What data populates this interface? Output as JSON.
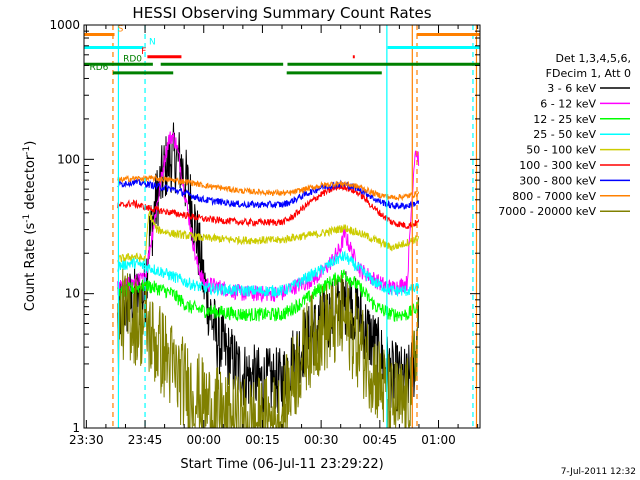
{
  "chart_data": {
    "type": "line",
    "title": "HESSI Observing Summary Count Rates",
    "xlabel": "Start Time (06-Jul-11 23:29:22)",
    "ylabel_main": "Count Rate (s",
    "ylabel_sup1": "-1",
    "ylabel_mid": " detector",
    "ylabel_sup2": "-1",
    "ylabel_end": ")",
    "y_scale": "log",
    "ylim": [
      1,
      1000
    ],
    "xlim_minutes": [
      -30.6,
      70.6
    ],
    "x_ticks": [
      {
        "label": "23:30",
        "m": -30
      },
      {
        "label": "23:45",
        "m": -15
      },
      {
        "label": "00:00",
        "m": 0
      },
      {
        "label": "00:15",
        "m": 15
      },
      {
        "label": "00:30",
        "m": 30
      },
      {
        "label": "00:45",
        "m": 45
      },
      {
        "label": "01:00",
        "m": 60
      }
    ],
    "y_ticks": [
      {
        "label": "1",
        "v": 1
      },
      {
        "label": "10",
        "v": 10
      },
      {
        "label": "100",
        "v": 100
      },
      {
        "label": "1000",
        "v": 1000
      }
    ],
    "footer_date": "7-Jul-2011 12:32",
    "legend_header": [
      "Det 1,3,4,5,6,",
      "FDecim 1, Att 0"
    ],
    "series": [
      {
        "name": "3 - 6 keV",
        "color": "#000000",
        "noise": 0.6,
        "points": [
          [
            -22,
            6
          ],
          [
            -21,
            8
          ],
          [
            -17,
            9
          ],
          [
            -15,
            10
          ],
          [
            -14,
            25
          ],
          [
            -12,
            50
          ],
          [
            -10,
            85
          ],
          [
            -8,
            105
          ],
          [
            -6,
            95
          ],
          [
            -4,
            60
          ],
          [
            -2,
            30
          ],
          [
            0,
            12
          ],
          [
            3,
            5
          ],
          [
            6,
            3.5
          ],
          [
            10,
            2.5
          ],
          [
            15,
            2.2
          ],
          [
            20,
            2.2
          ],
          [
            22,
            3
          ],
          [
            25,
            4
          ],
          [
            30,
            6
          ],
          [
            35,
            8
          ],
          [
            37,
            9
          ],
          [
            40,
            6.5
          ],
          [
            43,
            4.5
          ],
          [
            45,
            3.5
          ],
          [
            48,
            2.5
          ],
          [
            52,
            2.2
          ],
          [
            54,
            3
          ],
          [
            55,
            10
          ]
        ]
      },
      {
        "name": "6 - 12 keV",
        "color": "#ff00ff",
        "noise": 0.14,
        "points": [
          [
            -22,
            11
          ],
          [
            -18,
            12
          ],
          [
            -15,
            13
          ],
          [
            -14,
            20
          ],
          [
            -12,
            45
          ],
          [
            -10,
            100
          ],
          [
            -9,
            140
          ],
          [
            -8,
            150
          ],
          [
            -7,
            130
          ],
          [
            -6,
            90
          ],
          [
            -4,
            40
          ],
          [
            -2,
            18
          ],
          [
            0,
            12
          ],
          [
            5,
            11
          ],
          [
            10,
            10
          ],
          [
            15,
            10
          ],
          [
            20,
            10
          ],
          [
            22,
            11
          ],
          [
            26,
            12
          ],
          [
            30,
            14
          ],
          [
            33,
            18
          ],
          [
            35,
            22
          ],
          [
            36,
            28
          ],
          [
            38,
            20
          ],
          [
            40,
            15
          ],
          [
            45,
            12
          ],
          [
            48,
            11
          ],
          [
            52,
            12
          ],
          [
            53,
            40
          ],
          [
            54,
            120
          ],
          [
            55,
            100
          ]
        ]
      },
      {
        "name": "12 - 25 keV",
        "color": "#00ff00",
        "noise": 0.12,
        "points": [
          [
            -22,
            10
          ],
          [
            -18,
            11
          ],
          [
            -15,
            11.5
          ],
          [
            -12,
            11
          ],
          [
            -8,
            10
          ],
          [
            -4,
            8
          ],
          [
            0,
            7.5
          ],
          [
            10,
            7
          ],
          [
            20,
            7
          ],
          [
            22,
            7.5
          ],
          [
            26,
            9
          ],
          [
            30,
            11
          ],
          [
            34,
            13
          ],
          [
            36,
            14
          ],
          [
            40,
            11
          ],
          [
            44,
            8
          ],
          [
            48,
            7
          ],
          [
            52,
            7
          ],
          [
            55,
            8
          ]
        ]
      },
      {
        "name": "25 - 50 keV",
        "color": "#00ffff",
        "noise": 0.1,
        "points": [
          [
            -22,
            16
          ],
          [
            -18,
            17
          ],
          [
            -15,
            16
          ],
          [
            -12,
            15
          ],
          [
            -8,
            13.5
          ],
          [
            -4,
            12
          ],
          [
            0,
            11
          ],
          [
            10,
            10.5
          ],
          [
            20,
            10.5
          ],
          [
            22,
            11
          ],
          [
            26,
            13
          ],
          [
            30,
            15
          ],
          [
            34,
            18
          ],
          [
            36,
            19
          ],
          [
            40,
            15
          ],
          [
            44,
            12
          ],
          [
            48,
            10.5
          ],
          [
            52,
            10.5
          ],
          [
            55,
            11
          ]
        ]
      },
      {
        "name": "50 - 100 keV",
        "color": "#cccc00",
        "noise": 0.07,
        "points": [
          [
            -22,
            18
          ],
          [
            -18,
            19
          ],
          [
            -15,
            18
          ],
          [
            -14,
            40
          ],
          [
            -12,
            30
          ],
          [
            -8,
            28
          ],
          [
            -4,
            27
          ],
          [
            0,
            26
          ],
          [
            10,
            25
          ],
          [
            20,
            25
          ],
          [
            22,
            26
          ],
          [
            26,
            27
          ],
          [
            30,
            28
          ],
          [
            34,
            30
          ],
          [
            36,
            31
          ],
          [
            40,
            28
          ],
          [
            44,
            25
          ],
          [
            48,
            22
          ],
          [
            52,
            24
          ],
          [
            55,
            26
          ]
        ]
      },
      {
        "name": "100 - 300 keV",
        "color": "#ff0000",
        "noise": 0.06,
        "points": [
          [
            -22,
            45
          ],
          [
            -18,
            47
          ],
          [
            -15,
            44
          ],
          [
            -12,
            42
          ],
          [
            -8,
            40
          ],
          [
            -4,
            38
          ],
          [
            0,
            36
          ],
          [
            10,
            34
          ],
          [
            20,
            34
          ],
          [
            22,
            36
          ],
          [
            26,
            45
          ],
          [
            30,
            55
          ],
          [
            34,
            62
          ],
          [
            36,
            63
          ],
          [
            40,
            55
          ],
          [
            44,
            42
          ],
          [
            48,
            34
          ],
          [
            52,
            32
          ],
          [
            55,
            34
          ]
        ]
      },
      {
        "name": "300 - 800 keV",
        "color": "#0000ff",
        "noise": 0.06,
        "points": [
          [
            -22,
            65
          ],
          [
            -18,
            68
          ],
          [
            -15,
            66
          ],
          [
            -12,
            63
          ],
          [
            -8,
            60
          ],
          [
            -4,
            55
          ],
          [
            0,
            50
          ],
          [
            10,
            46
          ],
          [
            20,
            46
          ],
          [
            22,
            48
          ],
          [
            26,
            55
          ],
          [
            30,
            62
          ],
          [
            34,
            65
          ],
          [
            36,
            65
          ],
          [
            40,
            60
          ],
          [
            44,
            50
          ],
          [
            48,
            45
          ],
          [
            52,
            45
          ],
          [
            55,
            48
          ]
        ]
      },
      {
        "name": "800 - 7000 keV",
        "color": "#ff8000",
        "noise": 0.05,
        "points": [
          [
            -22,
            70
          ],
          [
            -18,
            72
          ],
          [
            -15,
            72
          ],
          [
            -12,
            72
          ],
          [
            -8,
            70
          ],
          [
            -4,
            68
          ],
          [
            0,
            64
          ],
          [
            10,
            58
          ],
          [
            20,
            56
          ],
          [
            22,
            56
          ],
          [
            26,
            60
          ],
          [
            30,
            64
          ],
          [
            34,
            66
          ],
          [
            36,
            66
          ],
          [
            40,
            62
          ],
          [
            44,
            55
          ],
          [
            48,
            52
          ],
          [
            52,
            53
          ],
          [
            55,
            56
          ]
        ]
      },
      {
        "name": "7000 - 20000 keV",
        "color": "#808000",
        "noise": 0.8,
        "points": [
          [
            -22,
            5
          ],
          [
            -21,
            7
          ],
          [
            -18,
            6.5
          ],
          [
            -15,
            6
          ],
          [
            -13,
            4.5
          ],
          [
            -10,
            3.5
          ],
          [
            -7,
            2.5
          ],
          [
            -4,
            2
          ],
          [
            0,
            1.5
          ],
          [
            5,
            1.2
          ],
          [
            10,
            1.1
          ],
          [
            15,
            1.1
          ],
          [
            20,
            1.2
          ],
          [
            22,
            2
          ],
          [
            26,
            4
          ],
          [
            30,
            5.5
          ],
          [
            34,
            6
          ],
          [
            36,
            6.5
          ],
          [
            40,
            4
          ],
          [
            44,
            2.5
          ],
          [
            48,
            1.5
          ],
          [
            52,
            1.5
          ],
          [
            54,
            3
          ],
          [
            55,
            8
          ]
        ]
      }
    ],
    "vlines": [
      {
        "m": -23.2,
        "color": "#ff8000",
        "dash": true
      },
      {
        "m": -21.8,
        "color": "#00ffff",
        "dash": false
      },
      {
        "m": -15.0,
        "color": "#00ffff",
        "dash": true
      },
      {
        "m": 46.8,
        "color": "#00ffff",
        "dash": false
      },
      {
        "m": 53.3,
        "color": "#ff8000",
        "dash": false
      },
      {
        "m": 54.5,
        "color": "#ff8000",
        "dash": true
      },
      {
        "m": 68.8,
        "color": "#00ffff",
        "dash": true
      },
      {
        "m": 69.7,
        "color": "#ff8000",
        "dash": false
      }
    ],
    "flags": [
      {
        "label": "S",
        "color": "#ff8000",
        "v": 850,
        "spans": [
          [
            -30.6,
            -22.8
          ],
          [
            54.4,
            70.6
          ]
        ],
        "label_m": -22.0
      },
      {
        "label": "N",
        "color": "#00ffff",
        "v": 680,
        "spans": [
          [
            -30.6,
            -15.4
          ],
          [
            47.0,
            70.6
          ]
        ],
        "label_m": -14.0
      },
      {
        "label": "F",
        "color": "#ff0000",
        "v": 580,
        "spans": [
          [
            -14.4,
            -5.7
          ],
          [
            38.1,
            38.6
          ]
        ],
        "label_m": -16.0
      },
      {
        "label": "RD0",
        "color": "#008000",
        "v": 510,
        "spans": [
          [
            -30.6,
            -13.0
          ],
          [
            -11.0,
            20.3
          ],
          [
            21.4,
            70.6
          ]
        ],
        "label_m": -20.6
      },
      {
        "label": "RD6",
        "color": "#008000",
        "v": 440,
        "spans": [
          [
            -23.2,
            -7.8
          ],
          [
            21.2,
            45.5
          ]
        ],
        "label_m": -29.2
      }
    ]
  }
}
